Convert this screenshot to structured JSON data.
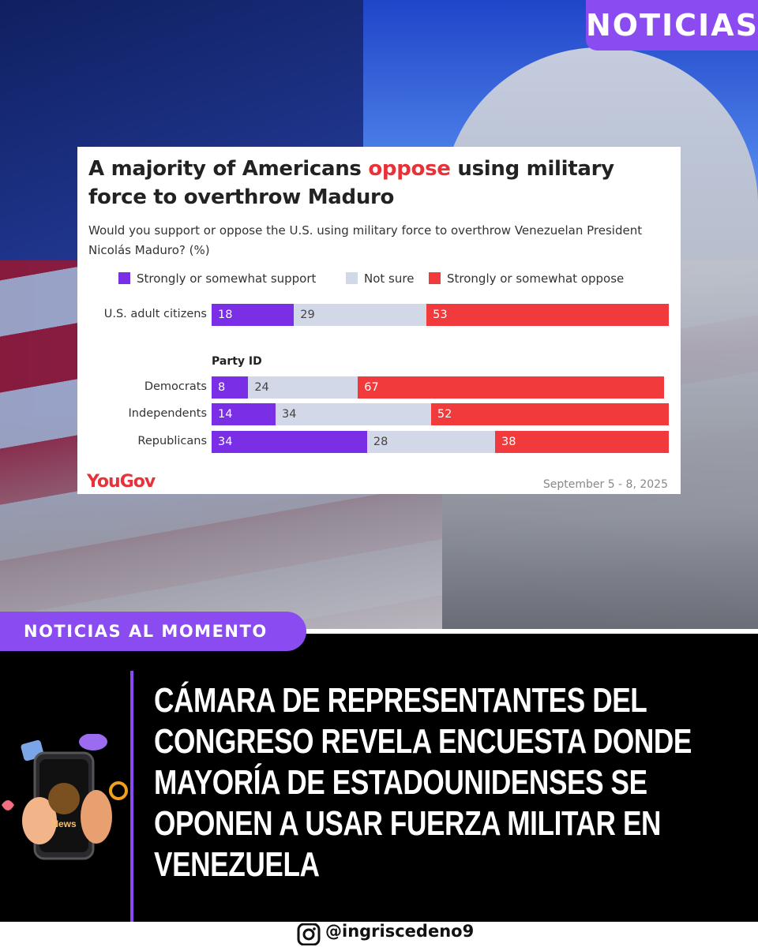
{
  "badge": "NOTICIAS",
  "section_tag": "NOTICIAS AL MOMENTO",
  "headline": "CÁMARA DE REPRESENTANTES DEL CONGRESO REVELA ENCUESTA DONDE MAYORÍA DE ESTADOUNIDENSES SE OPONEN A USAR FUERZA MILITAR EN VENEZUELA",
  "icon_label": "News",
  "handle": "@ingriscedeno9",
  "chart_data": {
    "type": "stacked-bar-horizontal",
    "title_start": "A majority of Americans ",
    "title_highlight": "oppose",
    "title_end": " using military force to overthrow Maduro",
    "subtitle": "Would you support or oppose the U.S. using military force to overthrow Venezuelan President Nicolás Maduro? (%)",
    "group_label": "Party ID",
    "categories": [
      "U.S. adult citizens",
      "Democrats",
      "Independents",
      "Republicans"
    ],
    "series": [
      {
        "name": "Strongly or somewhat support",
        "color": "#7a2ee6",
        "values": [
          18,
          8,
          14,
          34
        ]
      },
      {
        "name": "Not sure",
        "color": "#d3d8e8",
        "values": [
          29,
          24,
          34,
          28
        ]
      },
      {
        "name": "Strongly or somewhat oppose",
        "color": "#f03a3c",
        "values": [
          53,
          67,
          52,
          38
        ]
      }
    ],
    "xlim": [
      0,
      100
    ],
    "source": "YouGov",
    "date": "September 5 - 8, 2025"
  }
}
